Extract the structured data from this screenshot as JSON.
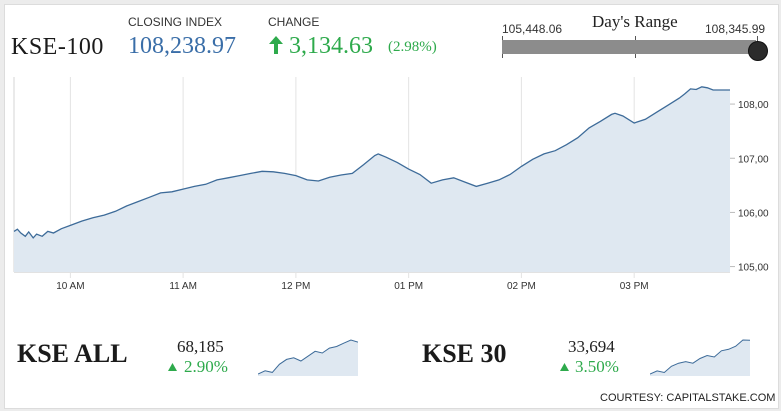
{
  "header": {
    "index_name": "KSE-100",
    "closing_label": "CLOSING INDEX",
    "closing_value": "108,238.97",
    "change_label": "CHANGE",
    "change_value": "3,134.63",
    "change_pct": "(2.98%)",
    "change_direction": "up",
    "accent_color": "#2eaa4c",
    "value_color": "#3a6ea8"
  },
  "days_range": {
    "title": "Day's Range",
    "low": "105,448.06",
    "high": "108,345.99",
    "current_position_fraction": 0.96
  },
  "chart_data": {
    "type": "area",
    "title": "",
    "xlabel": "",
    "ylabel": "",
    "x_ticks": [
      "10 AM",
      "11 AM",
      "12 PM",
      "01 PM",
      "02 PM",
      "03 PM"
    ],
    "y_ticks": [
      "105,00",
      "106,00",
      "107,00",
      "108,00"
    ],
    "x_range_hours": [
      9.5,
      15.85
    ],
    "ylim": [
      104900,
      108500
    ],
    "grid": true,
    "line_color": "#3d6b99",
    "fill_color": "#dfe8f1",
    "series": [
      {
        "points": [
          [
            9.5,
            105650
          ],
          [
            9.53,
            105690
          ],
          [
            9.56,
            105620
          ],
          [
            9.6,
            105560
          ],
          [
            9.63,
            105640
          ],
          [
            9.67,
            105530
          ],
          [
            9.7,
            105600
          ],
          [
            9.75,
            105560
          ],
          [
            9.8,
            105650
          ],
          [
            9.85,
            105620
          ],
          [
            9.92,
            105700
          ],
          [
            10.0,
            105760
          ],
          [
            10.1,
            105840
          ],
          [
            10.2,
            105900
          ],
          [
            10.3,
            105950
          ],
          [
            10.4,
            106020
          ],
          [
            10.5,
            106120
          ],
          [
            10.6,
            106200
          ],
          [
            10.7,
            106280
          ],
          [
            10.8,
            106360
          ],
          [
            10.9,
            106380
          ],
          [
            11.0,
            106430
          ],
          [
            11.1,
            106480
          ],
          [
            11.2,
            106520
          ],
          [
            11.3,
            106600
          ],
          [
            11.4,
            106640
          ],
          [
            11.5,
            106680
          ],
          [
            11.6,
            106720
          ],
          [
            11.7,
            106760
          ],
          [
            11.8,
            106750
          ],
          [
            11.9,
            106720
          ],
          [
            12.0,
            106680
          ],
          [
            12.1,
            106600
          ],
          [
            12.2,
            106580
          ],
          [
            12.3,
            106650
          ],
          [
            12.4,
            106690
          ],
          [
            12.5,
            106720
          ],
          [
            12.6,
            106880
          ],
          [
            12.7,
            107050
          ],
          [
            12.73,
            107080
          ],
          [
            12.8,
            107020
          ],
          [
            12.9,
            106920
          ],
          [
            13.0,
            106800
          ],
          [
            13.1,
            106700
          ],
          [
            13.2,
            106540
          ],
          [
            13.3,
            106600
          ],
          [
            13.4,
            106640
          ],
          [
            13.5,
            106560
          ],
          [
            13.6,
            106480
          ],
          [
            13.7,
            106540
          ],
          [
            13.8,
            106600
          ],
          [
            13.9,
            106700
          ],
          [
            14.0,
            106850
          ],
          [
            14.1,
            106980
          ],
          [
            14.2,
            107080
          ],
          [
            14.3,
            107140
          ],
          [
            14.4,
            107250
          ],
          [
            14.5,
            107380
          ],
          [
            14.6,
            107560
          ],
          [
            14.7,
            107680
          ],
          [
            14.8,
            107810
          ],
          [
            14.83,
            107830
          ],
          [
            14.9,
            107780
          ],
          [
            15.0,
            107650
          ],
          [
            15.1,
            107720
          ],
          [
            15.2,
            107850
          ],
          [
            15.3,
            107980
          ],
          [
            15.4,
            108110
          ],
          [
            15.45,
            108190
          ],
          [
            15.5,
            108280
          ],
          [
            15.55,
            108270
          ],
          [
            15.6,
            108320
          ],
          [
            15.65,
            108300
          ],
          [
            15.7,
            108260
          ],
          [
            15.85,
            108260
          ]
        ]
      }
    ]
  },
  "secondary_indices": [
    {
      "name": "KSE ALL",
      "value": "68,185",
      "change": "2.90%",
      "sparkline": [
        67200,
        67300,
        67250,
        67500,
        67650,
        67700,
        67600,
        67750,
        67900,
        67850,
        68000,
        68050,
        68150,
        68250,
        68185
      ]
    },
    {
      "name": "KSE 30",
      "value": "33,694",
      "change": "3.50%",
      "sparkline": [
        32600,
        32700,
        32650,
        32850,
        32950,
        33000,
        32950,
        33100,
        33200,
        33150,
        33350,
        33400,
        33500,
        33700,
        33694
      ]
    }
  ],
  "footer": {
    "courtesy": "COURTESY: CAPITALSTAKE.COM"
  }
}
